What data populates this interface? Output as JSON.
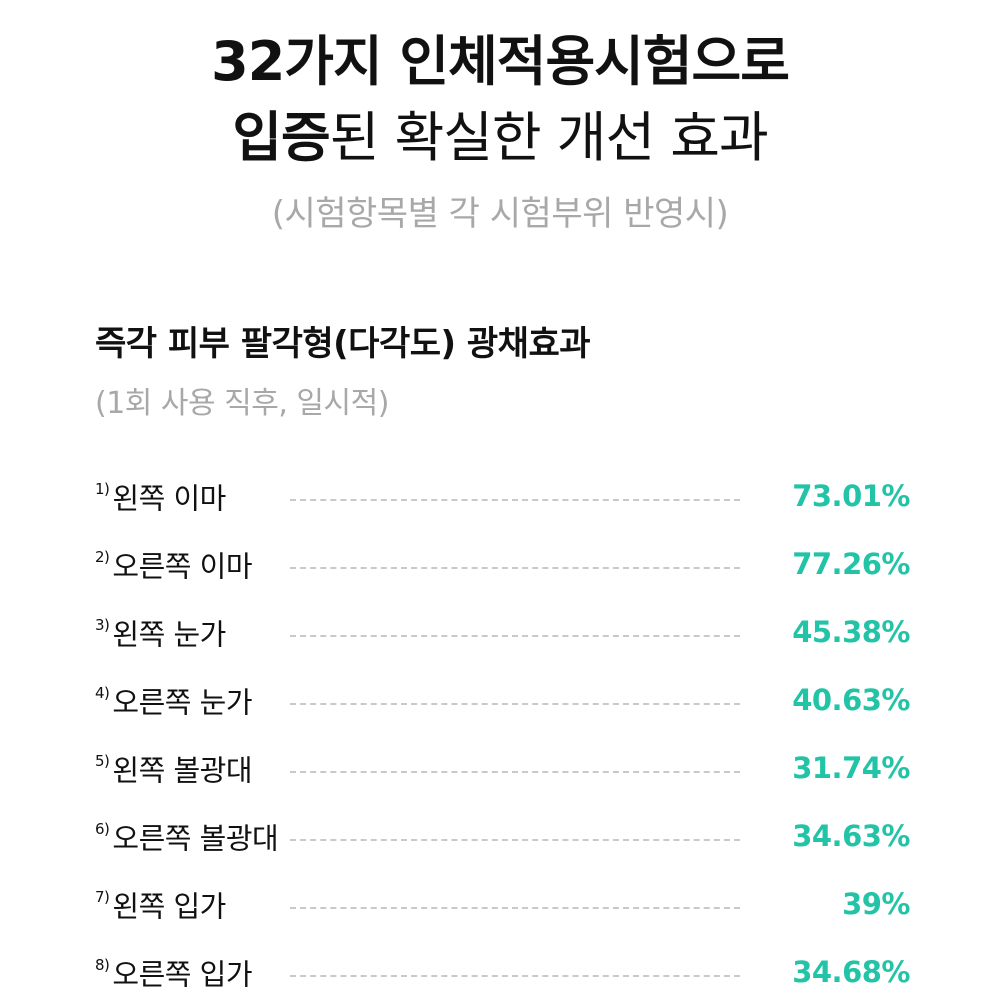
{
  "header": {
    "title_line1": "32가지 인체적용시험으로",
    "title_line2_strong": "입증",
    "title_line2_rest": "된 확실한 개선 효과",
    "subtitle": "(시험항목별 각 시험부위 반영시)"
  },
  "section": {
    "title": "즉각 피부 팔각형(다각도) 광채효과",
    "subtitle": "(1회 사용 직후, 일시적)"
  },
  "accent_color": "#22c3a6",
  "items": [
    {
      "num": "1)",
      "label": "왼쪽 이마",
      "value": "73.01%"
    },
    {
      "num": "2)",
      "label": "오른쪽 이마",
      "value": "77.26%"
    },
    {
      "num": "3)",
      "label": "왼쪽 눈가",
      "value": "45.38%"
    },
    {
      "num": "4)",
      "label": "오른쪽 눈가",
      "value": "40.63%"
    },
    {
      "num": "5)",
      "label": "왼쪽 볼광대",
      "value": "31.74%"
    },
    {
      "num": "6)",
      "label": "오른쪽 볼광대",
      "value": "34.63%"
    },
    {
      "num": "7)",
      "label": "왼쪽 입가",
      "value": "39%"
    },
    {
      "num": "8)",
      "label": "오른쪽 입가",
      "value": "34.68%"
    }
  ]
}
